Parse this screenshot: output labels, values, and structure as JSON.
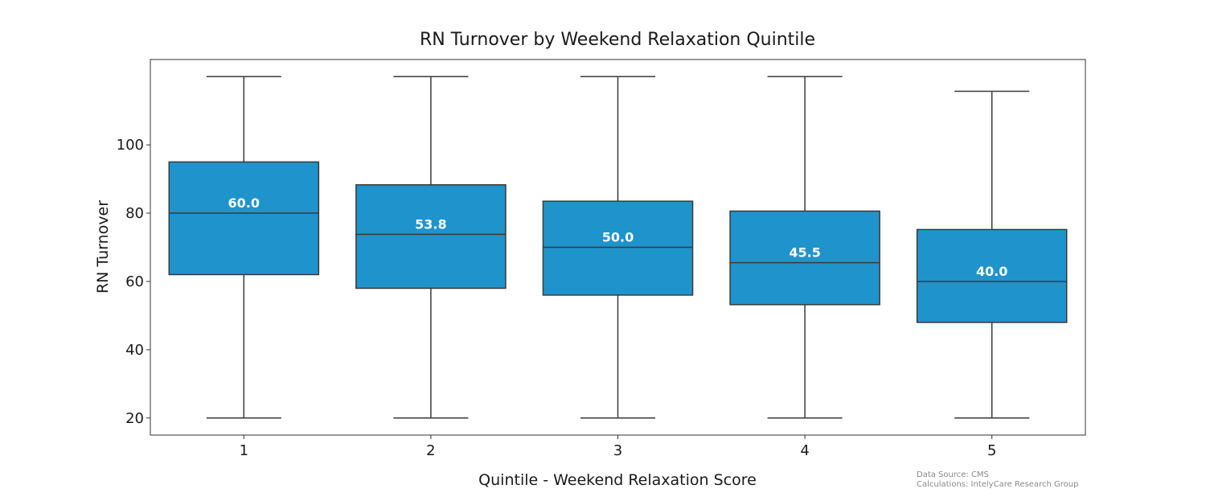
{
  "chart_data": {
    "type": "boxplot",
    "title": "RN Turnover by Weekend Relaxation Quintile",
    "xlabel": "Quintile - Weekend Relaxation Score",
    "ylabel": "RN Turnover",
    "categories": [
      "1",
      "2",
      "3",
      "4",
      "5"
    ],
    "boxes": [
      {
        "category": "1",
        "whisker_low": 20,
        "q1": 62,
        "median": 80,
        "q3": 95,
        "whisker_high": 120,
        "label": "60.0"
      },
      {
        "category": "2",
        "whisker_low": 20,
        "q1": 58,
        "median": 73.8,
        "q3": 88.3,
        "whisker_high": 120,
        "label": "53.8"
      },
      {
        "category": "3",
        "whisker_low": 20,
        "q1": 56,
        "median": 70,
        "q3": 83.5,
        "whisker_high": 120,
        "label": "50.0"
      },
      {
        "category": "4",
        "whisker_low": 20,
        "q1": 53.2,
        "median": 65.5,
        "q3": 80.6,
        "whisker_high": 120,
        "label": "45.5"
      },
      {
        "category": "5",
        "whisker_low": 20,
        "q1": 48,
        "median": 60,
        "q3": 75.2,
        "whisker_high": 115.7,
        "label": "40.0"
      }
    ],
    "yticks": [
      20,
      40,
      60,
      80,
      100
    ],
    "ylim": [
      15,
      125
    ],
    "box_color": "#1f93cc",
    "grid": false
  },
  "footnote": {
    "line1": "Data Source: CMS",
    "line2": "Calculations: IntelyCare Research Group"
  }
}
